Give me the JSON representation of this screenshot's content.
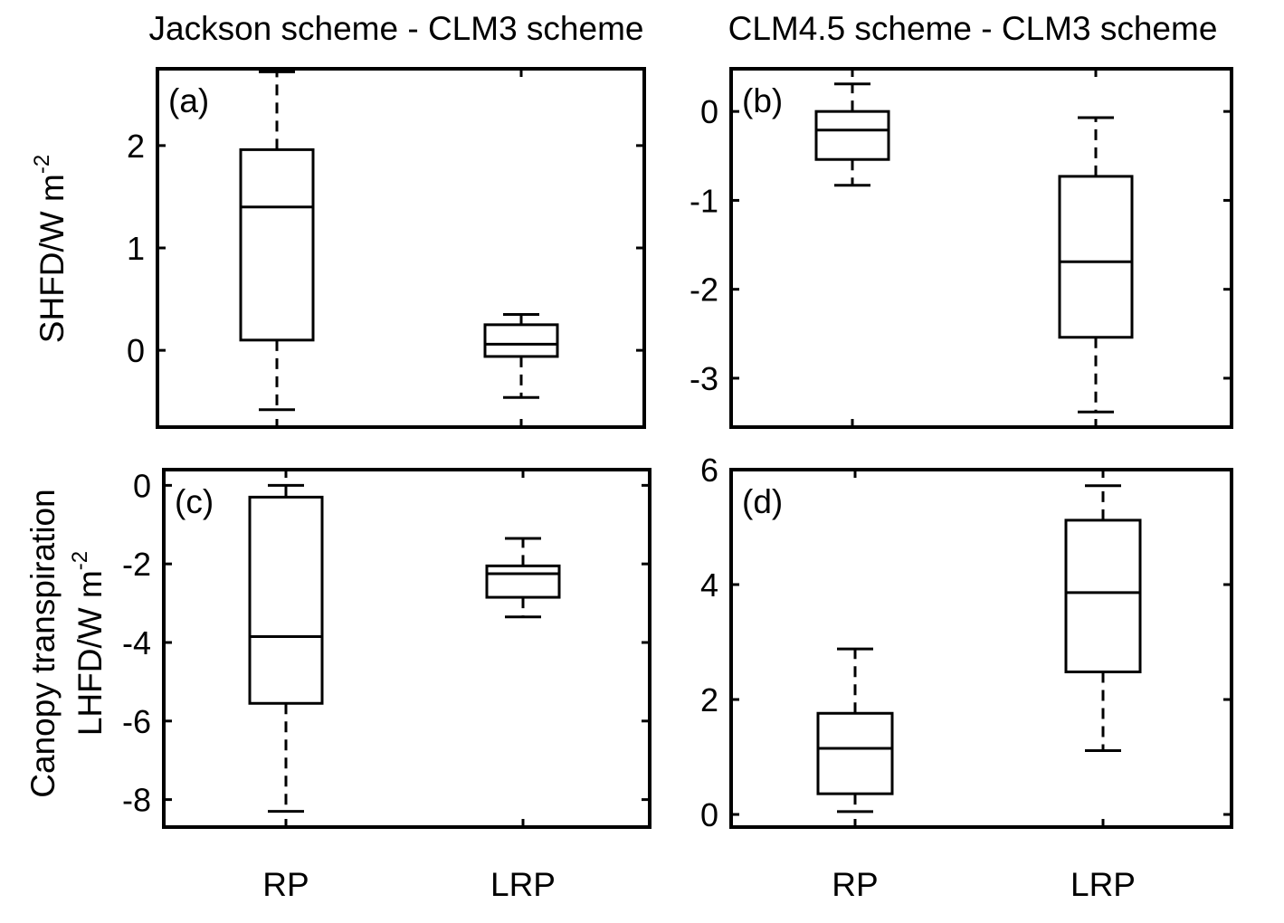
{
  "figure": {
    "column_titles": [
      "Jackson scheme - CLM3 scheme",
      "CLM4.5 scheme - CLM3 scheme"
    ],
    "row_labels": [
      {
        "line1": "SHFD/W m",
        "sup": "-2"
      },
      {
        "line0": "Canopy transpiration",
        "line1": "LHFD/W m",
        "sup": "-2"
      }
    ]
  },
  "chart_data": [
    {
      "type": "box",
      "panel_label": "(a)",
      "categories": [
        "RP",
        "LRP"
      ],
      "ylim": [
        -0.75,
        2.75
      ],
      "yticks": [
        0,
        1,
        2
      ],
      "yticklabels": [
        "0",
        "1",
        "2"
      ],
      "boxes": [
        {
          "name": "RP",
          "whisker_low": -0.58,
          "q1": 0.1,
          "median": 1.4,
          "q3": 1.96,
          "whisker_high": 2.72
        },
        {
          "name": "LRP",
          "whisker_low": -0.46,
          "q1": -0.06,
          "median": 0.06,
          "q3": 0.25,
          "whisker_high": 0.35
        }
      ]
    },
    {
      "type": "box",
      "panel_label": "(b)",
      "categories": [
        "RP",
        "LRP"
      ],
      "ylim": [
        -3.55,
        0.48
      ],
      "yticks": [
        -3,
        -2,
        -1,
        0
      ],
      "yticklabels": [
        "-3",
        "-2",
        "-1",
        "0"
      ],
      "boxes": [
        {
          "name": "RP",
          "whisker_low": -0.83,
          "q1": -0.54,
          "median": -0.21,
          "q3": 0.0,
          "whisker_high": 0.31
        },
        {
          "name": "LRP",
          "whisker_low": -3.38,
          "q1": -2.54,
          "median": -1.69,
          "q3": -0.73,
          "whisker_high": -0.07
        }
      ]
    },
    {
      "type": "box",
      "panel_label": "(c)",
      "categories": [
        "RP",
        "LRP"
      ],
      "ylim": [
        -8.7,
        0.4
      ],
      "yticks": [
        -8,
        -6,
        -4,
        -2,
        0
      ],
      "yticklabels": [
        "-8",
        "-6",
        "-4",
        "-2",
        "0"
      ],
      "boxes": [
        {
          "name": "RP",
          "whisker_low": -8.3,
          "q1": -5.55,
          "median": -3.85,
          "q3": -0.3,
          "whisker_high": 0.0
        },
        {
          "name": "LRP",
          "whisker_low": -3.35,
          "q1": -2.85,
          "median": -2.25,
          "q3": -2.05,
          "whisker_high": -1.35
        }
      ]
    },
    {
      "type": "box",
      "panel_label": "(d)",
      "categories": [
        "RP",
        "LRP"
      ],
      "ylim": [
        -0.22,
        6.0
      ],
      "yticks": [
        0,
        2,
        4,
        6
      ],
      "yticklabels": [
        "0",
        "2",
        "4",
        "6"
      ],
      "boxes": [
        {
          "name": "RP",
          "whisker_low": 0.05,
          "q1": 0.36,
          "median": 1.15,
          "q3": 1.76,
          "whisker_high": 2.88
        },
        {
          "name": "LRP",
          "whisker_low": 1.11,
          "q1": 2.48,
          "median": 3.86,
          "q3": 5.12,
          "whisker_high": 5.72
        }
      ]
    }
  ]
}
